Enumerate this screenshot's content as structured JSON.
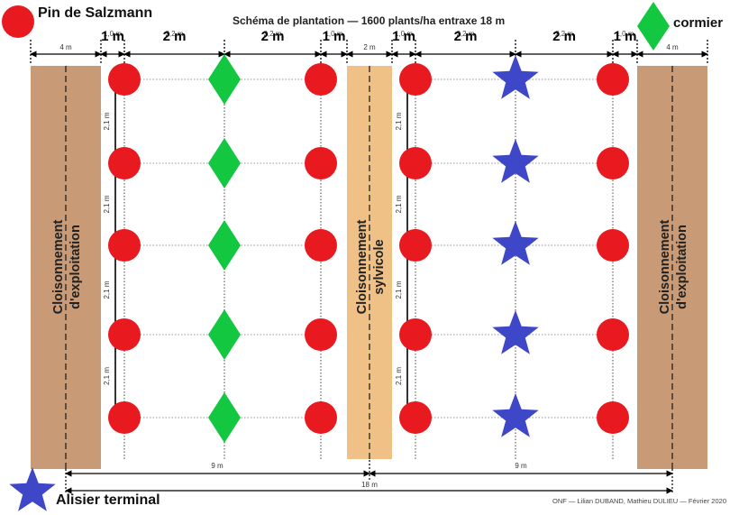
{
  "title": "Schéma de plantation — 1600 plants/ha entraxe 18 m",
  "credits": "ONF — Lilian DUBAND, Mathieu DULIEU — Février 2020",
  "legend": {
    "pin": "Pin de Salzmann",
    "cormier": "cormier",
    "alisier": "Alisier terminal"
  },
  "colors": {
    "pin": "#e8191f",
    "cormier": "#14c740",
    "alisier": "#3f47c9",
    "cloisonnement_exploitation": "#c99a76",
    "cloisonnement_sylvicole": "#efc186"
  },
  "strips": {
    "exploitation_label_line1": "Cloisonnement",
    "exploitation_label_line2": "d'exploitation",
    "sylvicole_label_line1": "Cloisonnement",
    "sylvicole_label_line2": "sylvicole"
  },
  "dimensions": {
    "strip_exploitation": "4 m",
    "strip_sylvicole": "2 m",
    "gap_small_big": "1 m",
    "gap_small_under": "1,0 m",
    "gap_large_big": "2 m",
    "gap_large_under": "2,2 m",
    "row_spacing": "2,1 m",
    "half_span": "9 m",
    "full_span": "18 m"
  }
}
